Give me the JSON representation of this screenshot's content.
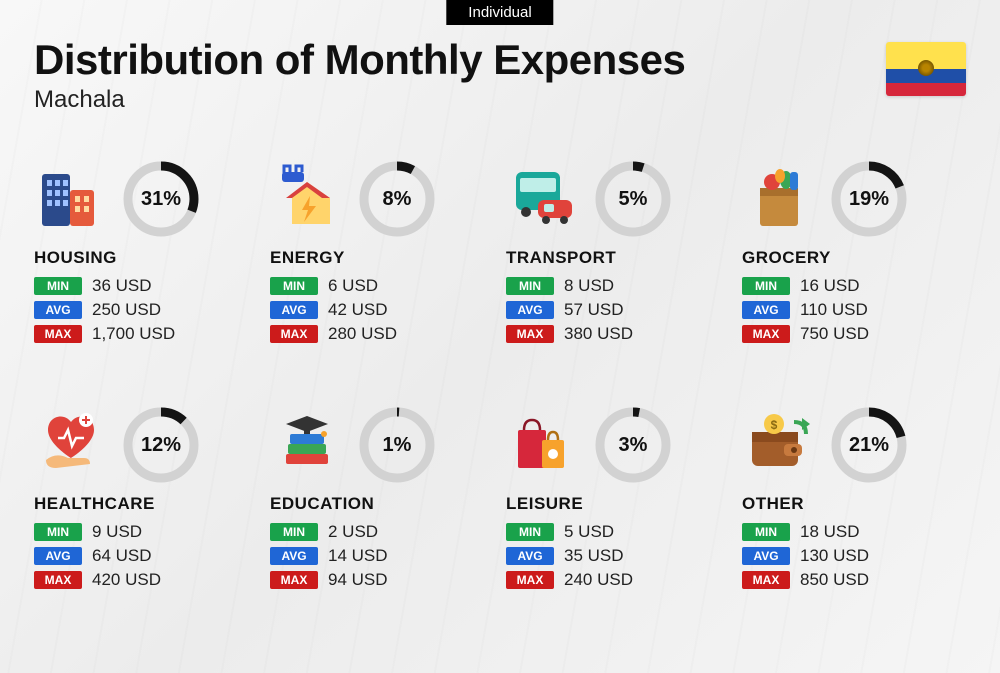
{
  "badge": "Individual",
  "title": "Distribution of Monthly Expenses",
  "subtitle": "Machala",
  "flag": {
    "top": "#ffe14d",
    "mid": "#1f4fa8",
    "bot": "#d6273b"
  },
  "labels": {
    "min": "MIN",
    "avg": "AVG",
    "max": "MAX"
  },
  "ring": {
    "track_color": "#d2d2d2",
    "progress_color": "#141414",
    "stroke_width": 9,
    "radius": 33
  },
  "tag_colors": {
    "min": "#19a24b",
    "avg": "#1f66d6",
    "max": "#cc1b1b"
  },
  "categories": [
    {
      "key": "housing",
      "name": "HOUSING",
      "percent": 31,
      "min": "36 USD",
      "avg": "250 USD",
      "max": "1,700 USD",
      "icon": "buildings"
    },
    {
      "key": "energy",
      "name": "ENERGY",
      "percent": 8,
      "min": "6 USD",
      "avg": "42 USD",
      "max": "280 USD",
      "icon": "energy-house"
    },
    {
      "key": "transport",
      "name": "TRANSPORT",
      "percent": 5,
      "min": "8 USD",
      "avg": "57 USD",
      "max": "380 USD",
      "icon": "bus-car"
    },
    {
      "key": "grocery",
      "name": "GROCERY",
      "percent": 19,
      "min": "16 USD",
      "avg": "110 USD",
      "max": "750 USD",
      "icon": "grocery-bag"
    },
    {
      "key": "healthcare",
      "name": "HEALTHCARE",
      "percent": 12,
      "min": "9 USD",
      "avg": "64 USD",
      "max": "420 USD",
      "icon": "heart-hand"
    },
    {
      "key": "education",
      "name": "EDUCATION",
      "percent": 1,
      "min": "2 USD",
      "avg": "14 USD",
      "max": "94 USD",
      "icon": "grad-books"
    },
    {
      "key": "leisure",
      "name": "LEISURE",
      "percent": 3,
      "min": "5 USD",
      "avg": "35 USD",
      "max": "240 USD",
      "icon": "shopping-bags"
    },
    {
      "key": "other",
      "name": "OTHER",
      "percent": 21,
      "min": "18 USD",
      "avg": "130 USD",
      "max": "850 USD",
      "icon": "wallet"
    }
  ]
}
